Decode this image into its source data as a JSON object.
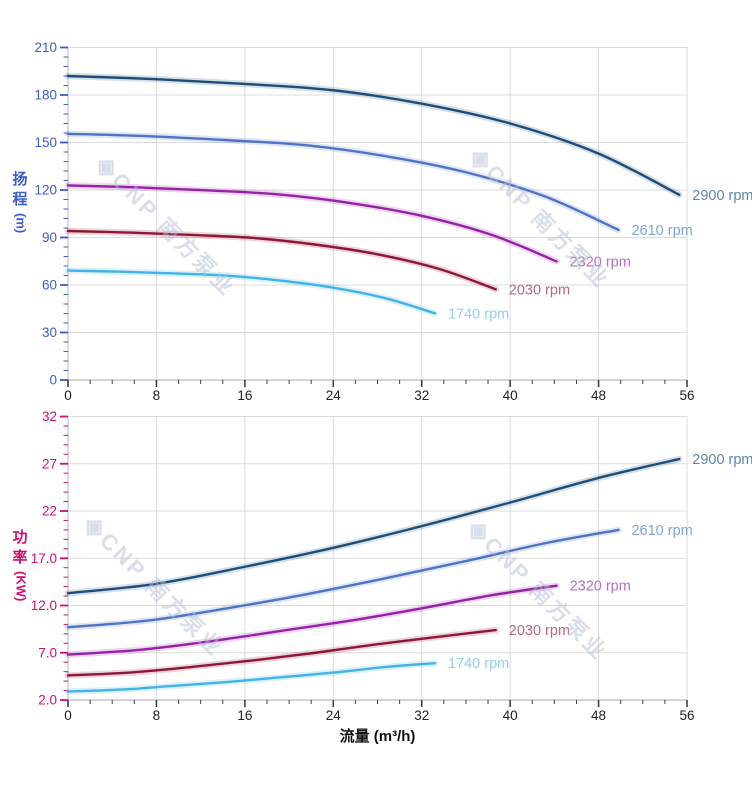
{
  "watermark": {
    "logo_glyph": "◈",
    "text": "CNP 南方泵业"
  },
  "x_axis_title": "流量 (m³/h)",
  "chart_data": [
    {
      "type": "line",
      "id": "head-curve",
      "ylabel": "扬程 (m)",
      "ylabel_chars": "扬程",
      "ylabel_unit": "(m)",
      "xlabel": "流量 (m³/h)",
      "x_range": [
        0,
        56
      ],
      "x_major": 8,
      "x_minor": 2,
      "y_range": [
        0,
        210
      ],
      "y_major": 30,
      "y_minor": 6,
      "x_ticks": [
        "0",
        "8",
        "16",
        "24",
        "32",
        "40",
        "48",
        "56"
      ],
      "y_ticks": [
        "0",
        "30",
        "60",
        "90",
        "120",
        "150",
        "180",
        "210"
      ],
      "axis_color": "#3b5ccd",
      "grid": true,
      "legend_position": "end-of-curve",
      "series": [
        {
          "name": "2900 rpm",
          "color": "#1d4e79",
          "label_color": "#5d87b0",
          "points": [
            [
              0,
              192
            ],
            [
              8,
              190
            ],
            [
              16,
              187
            ],
            [
              24,
              183
            ],
            [
              32,
              174.5
            ],
            [
              40,
              162
            ],
            [
              48,
              143
            ],
            [
              55.3,
              117
            ]
          ]
        },
        {
          "name": "2610 rpm",
          "color": "#4f74c5",
          "label_color": "#81a1d8",
          "points": [
            [
              0,
              155.5
            ],
            [
              7.2,
              154
            ],
            [
              14.4,
              151.5
            ],
            [
              21.6,
              148.2
            ],
            [
              28.8,
              141.3
            ],
            [
              36,
              131.2
            ],
            [
              43.2,
              115.8
            ],
            [
              49.8,
              94.8
            ]
          ]
        },
        {
          "name": "2320 rpm",
          "color": "#9621a7",
          "label_color": "#b66cc4",
          "points": [
            [
              0,
              122.9
            ],
            [
              6.4,
              121.6
            ],
            [
              12.8,
              119.7
            ],
            [
              19.2,
              117.1
            ],
            [
              25.6,
              111.7
            ],
            [
              32,
              103.7
            ],
            [
              38.4,
              91.5
            ],
            [
              44.2,
              74.9
            ]
          ]
        },
        {
          "name": "2030 rpm",
          "color": "#8e1737",
          "label_color": "#b56880",
          "points": [
            [
              0,
              94.1
            ],
            [
              5.6,
              93.1
            ],
            [
              11.2,
              91.6
            ],
            [
              16.8,
              89.7
            ],
            [
              22.4,
              85.5
            ],
            [
              28,
              79.4
            ],
            [
              33.6,
              70.1
            ],
            [
              38.7,
              57.3
            ]
          ]
        },
        {
          "name": "1740 rpm",
          "color": "#41b3e6",
          "label_color": "#8fd0f2",
          "points": [
            [
              0,
              69.1
            ],
            [
              4.8,
              68.4
            ],
            [
              9.6,
              67.3
            ],
            [
              14.4,
              65.9
            ],
            [
              19.2,
              62.8
            ],
            [
              24,
              58.3
            ],
            [
              28.8,
              51.5
            ],
            [
              33.2,
              42.1
            ]
          ]
        }
      ]
    },
    {
      "type": "line",
      "id": "power-curve",
      "ylabel": "功率 (KW)",
      "ylabel_chars": "功率",
      "ylabel_unit": "(KW)",
      "xlabel": "流量 (m³/h)",
      "x_range": [
        0,
        56
      ],
      "x_major": 8,
      "x_minor": 2,
      "y_range": [
        2,
        32
      ],
      "y_major": 5,
      "y_minor": 1,
      "x_ticks": [
        "0",
        "8",
        "16",
        "24",
        "32",
        "40",
        "48",
        "56"
      ],
      "y_ticks": [
        "2.0",
        "7.0",
        "12.0",
        "17.0",
        "22",
        "27",
        "32"
      ],
      "axis_color": "#cc1077",
      "grid": true,
      "legend_position": "end-of-curve",
      "series": [
        {
          "name": "2900 rpm",
          "color": "#1d4e79",
          "label_color": "#5d87b0",
          "points": [
            [
              0,
              13.3
            ],
            [
              8,
              14.3
            ],
            [
              16,
              16.1
            ],
            [
              24,
              18.1
            ],
            [
              32,
              20.4
            ],
            [
              40,
              22.9
            ],
            [
              48,
              25.5
            ],
            [
              55.3,
              27.5
            ]
          ]
        },
        {
          "name": "2610 rpm",
          "color": "#4f74c5",
          "label_color": "#81a1d8",
          "points": [
            [
              0,
              9.7
            ],
            [
              7.2,
              10.4
            ],
            [
              14.4,
              11.7
            ],
            [
              21.6,
              13.2
            ],
            [
              28.8,
              14.9
            ],
            [
              36,
              16.7
            ],
            [
              43.2,
              18.6
            ],
            [
              49.8,
              20.0
            ]
          ]
        },
        {
          "name": "2320 rpm",
          "color": "#9621a7",
          "label_color": "#b66cc4",
          "points": [
            [
              0,
              6.8
            ],
            [
              6.4,
              7.3
            ],
            [
              12.8,
              8.2
            ],
            [
              19.2,
              9.3
            ],
            [
              25.6,
              10.4
            ],
            [
              32,
              11.7
            ],
            [
              38.4,
              13.1
            ],
            [
              44.2,
              14.1
            ]
          ]
        },
        {
          "name": "2030 rpm",
          "color": "#8e1737",
          "label_color": "#b56880",
          "points": [
            [
              0,
              4.6
            ],
            [
              5.6,
              4.9
            ],
            [
              11.2,
              5.5
            ],
            [
              16.8,
              6.2
            ],
            [
              22.4,
              7.0
            ],
            [
              28,
              7.9
            ],
            [
              33.6,
              8.7
            ],
            [
              38.7,
              9.4
            ]
          ]
        },
        {
          "name": "1740 rpm",
          "color": "#41b3e6",
          "label_color": "#8fd0f2",
          "points": [
            [
              0,
              2.9
            ],
            [
              4.8,
              3.1
            ],
            [
              9.6,
              3.5
            ],
            [
              14.4,
              3.9
            ],
            [
              19.2,
              4.4
            ],
            [
              24,
              4.9
            ],
            [
              28.8,
              5.5
            ],
            [
              33.2,
              5.9
            ]
          ]
        }
      ]
    }
  ]
}
